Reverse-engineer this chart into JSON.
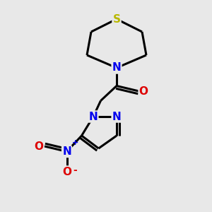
{
  "background_color": "#e8e8e8",
  "bond_color": "#000000",
  "bond_width": 2.2,
  "atom_S_color": "#b8b800",
  "atom_N_color": "#0000ee",
  "atom_O_color": "#dd0000",
  "font_size_atoms": 11,
  "fig_width": 3.0,
  "fig_height": 3.0,
  "dpi": 100,
  "xlim": [
    0,
    10
  ],
  "ylim": [
    0,
    10
  ]
}
